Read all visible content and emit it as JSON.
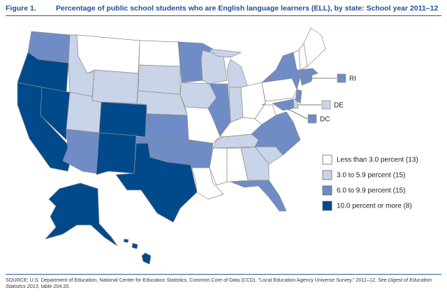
{
  "header": {
    "figure": "Figure 1.",
    "title": "Percentage of public school students who are English language learners (ELL), by state: School year 2011–12"
  },
  "legend": [
    {
      "label": "Less than 3.0 percent (13)",
      "color": "#ffffff"
    },
    {
      "label": "3.0 to 5.9 percent (15)",
      "color": "#c9d4e8"
    },
    {
      "label": "6.0 to 9.9 percent (15)",
      "color": "#6f8cc6"
    },
    {
      "label": "10.0 percent or more (8)",
      "color": "#004a8c"
    }
  ],
  "callouts": [
    "RI",
    "DE",
    "DC"
  ],
  "source": {
    "before": "SOURCE: U.S. Department of Education, National Center for Education Statistics, Common Core of Data (CCD), \"Local Education Agency Universe Survey,\" 2011–12. See ",
    "italic": "Digest of Education Statistics 2013",
    "after": ", table 204.20."
  }
}
